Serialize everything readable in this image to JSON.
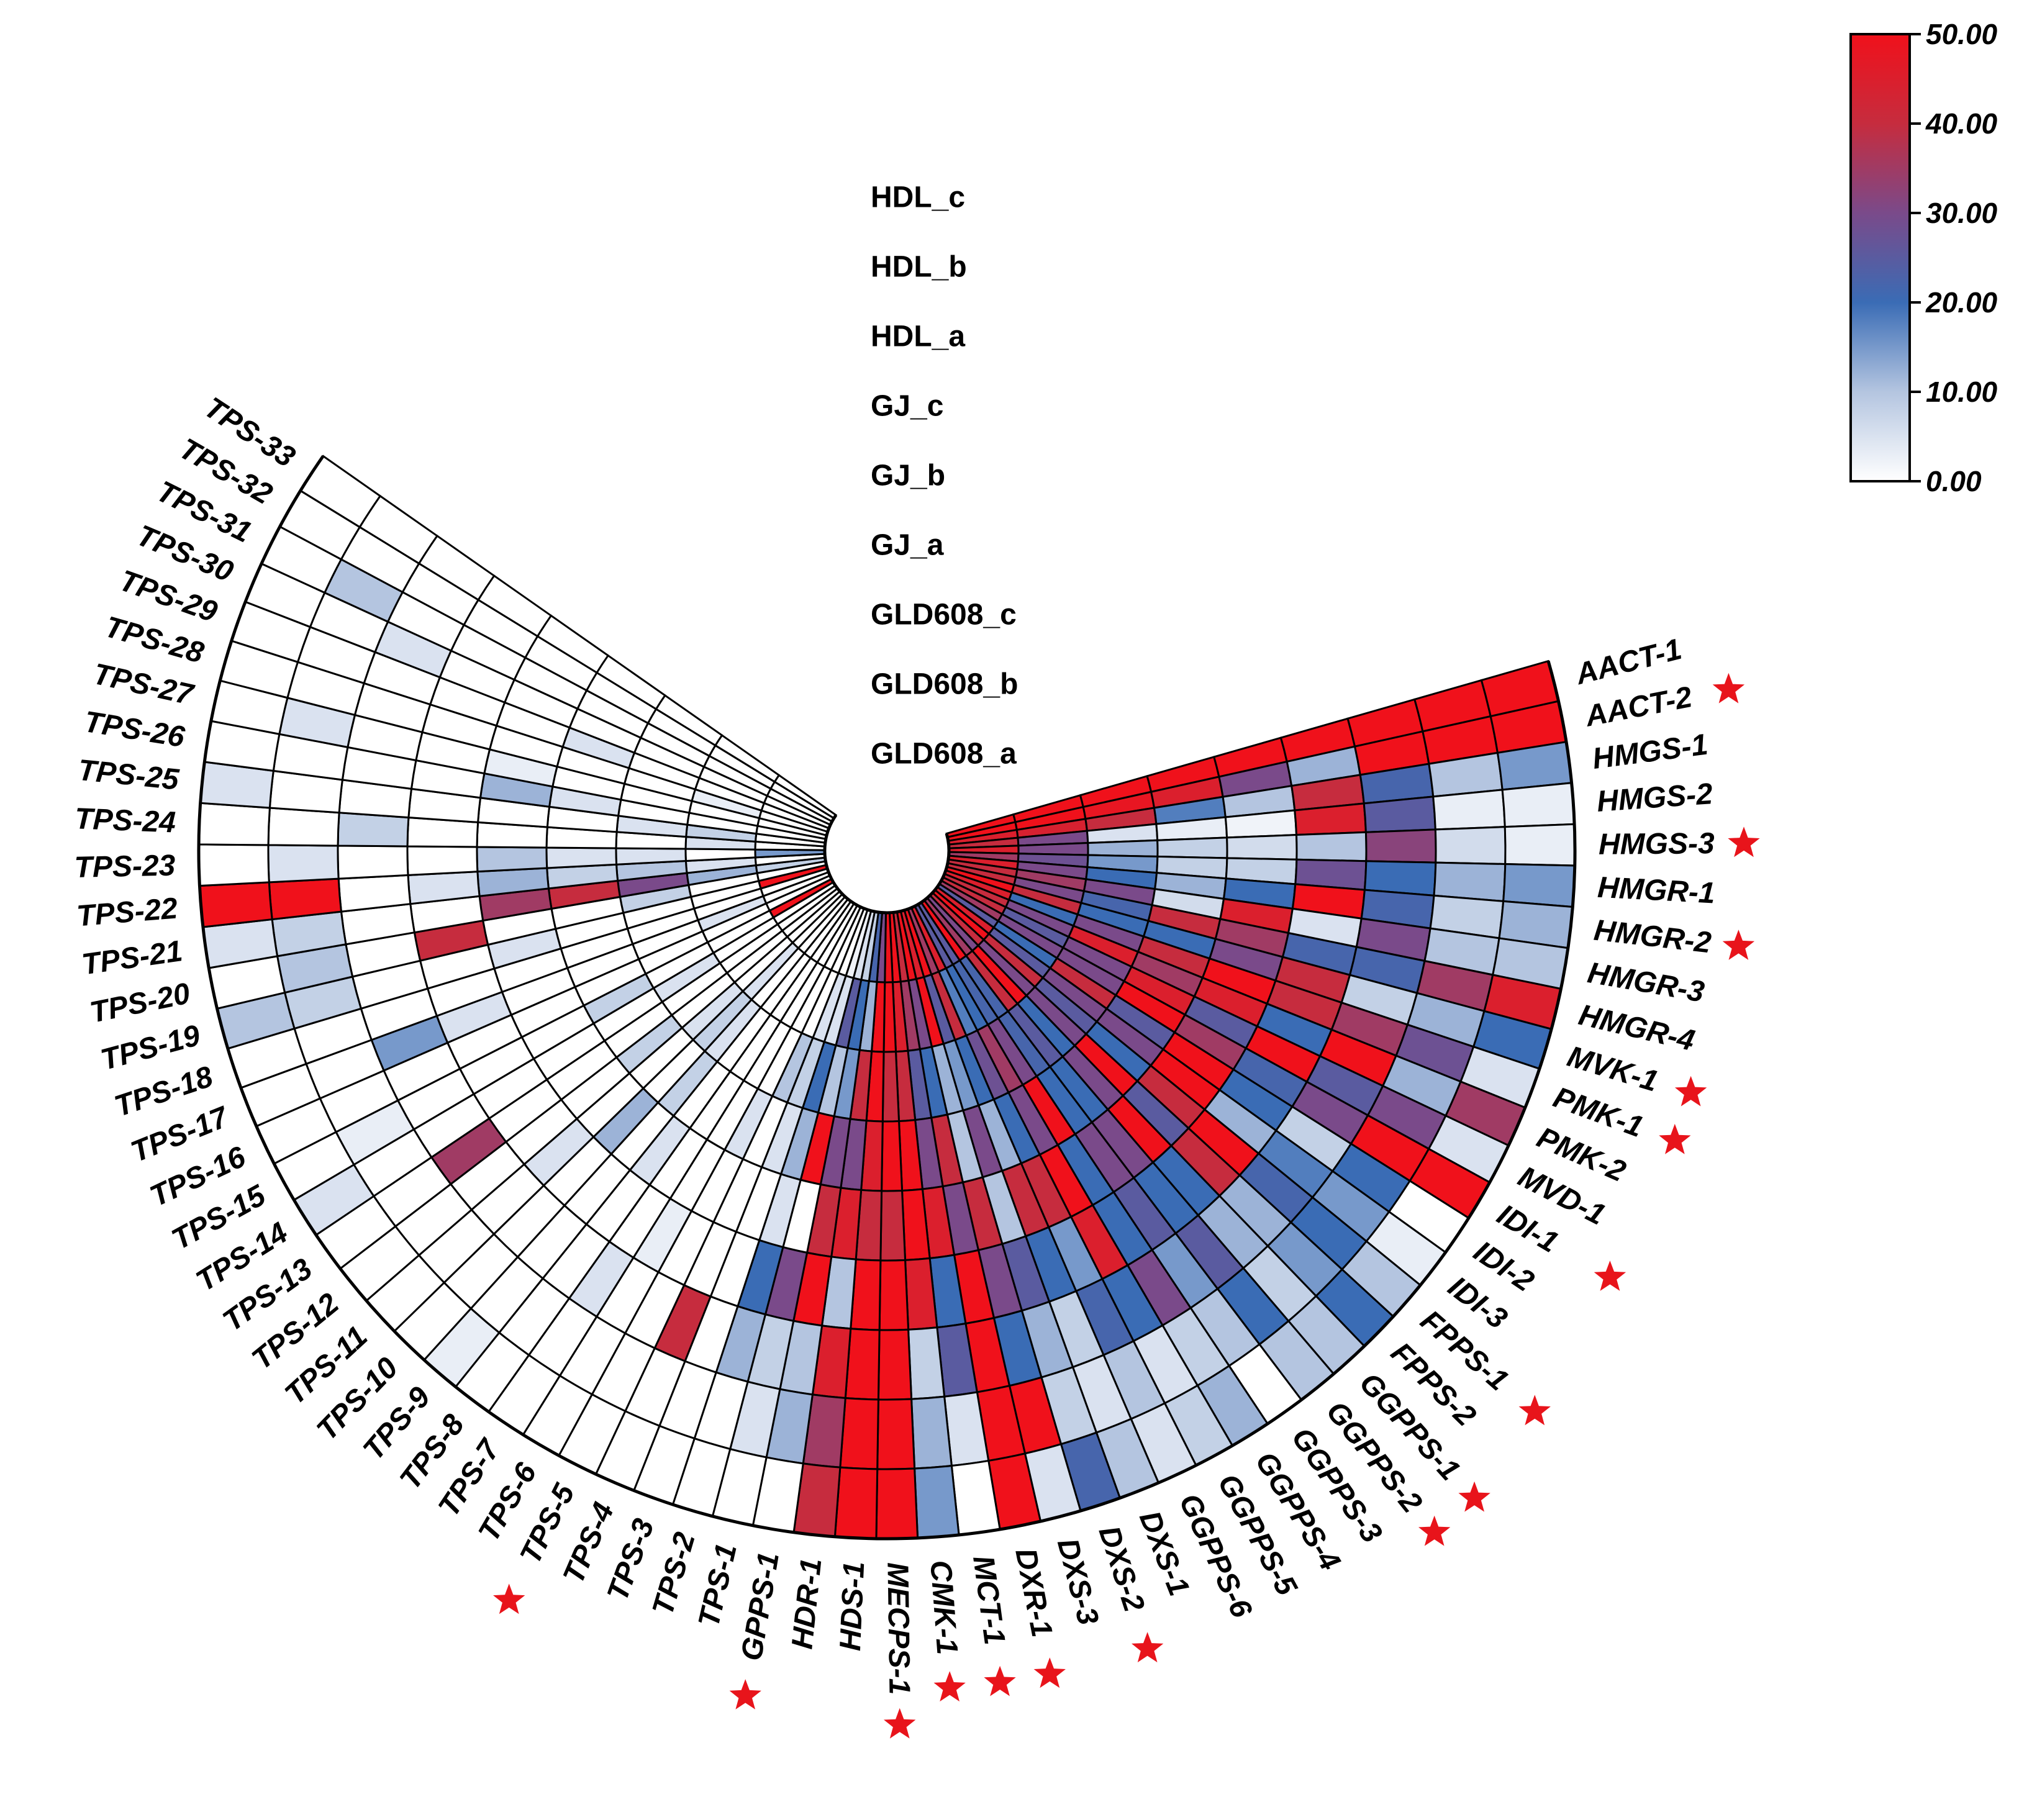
{
  "chart_data": {
    "type": "heatmap",
    "layout": "circular",
    "samples": [
      "GLD608_a",
      "GLD608_b",
      "GLD608_c",
      "GJ_a",
      "GJ_b",
      "GJ_c",
      "HDL_a",
      "HDL_b",
      "HDL_c"
    ],
    "genes": [
      "AACT-1",
      "AACT-2",
      "HMGS-1",
      "HMGS-2",
      "HMGS-3",
      "HMGR-1",
      "HMGR-2",
      "HMGR-3",
      "HMGR-4",
      "MVK-1",
      "PMK-1",
      "PMK-2",
      "MVD-1",
      "IDI-1",
      "IDI-2",
      "IDI-3",
      "FPPS-1",
      "FPPS-2",
      "GGPPS-1",
      "GGPPS-2",
      "GGPPS-3",
      "GGPPS-4",
      "GGPPS-5",
      "GGPPS-6",
      "DXS-1",
      "DXS-2",
      "DXS-3",
      "DXR-1",
      "MCT-1",
      "CMK-1",
      "MECPS-1",
      "HDS-1",
      "HDR-1",
      "GPPS-1",
      "TPS-1",
      "TPS-2",
      "TPS-3",
      "TPS-4",
      "TPS-5",
      "TPS-6",
      "TPS-7",
      "TPS-8",
      "TPS-9",
      "TPS-10",
      "TPS-11",
      "TPS-12",
      "TPS-13",
      "TPS-14",
      "TPS-15",
      "TPS-16",
      "TPS-17",
      "TPS-18",
      "TPS-19",
      "TPS-20",
      "TPS-21",
      "TPS-22",
      "TPS-23",
      "TPS-24",
      "TPS-25",
      "TPS-26",
      "TPS-27",
      "TPS-28",
      "TPS-29",
      "TPS-30",
      "TPS-31",
      "TPS-32",
      "TPS-33"
    ],
    "starred": [
      "AACT-2",
      "HMGS-3",
      "HMGR-2",
      "MVK-1",
      "PMK-1",
      "IDI-1",
      "FPPS-1",
      "GGPPS-1",
      "GGPPS-2",
      "DXS-2",
      "DXR-1",
      "MCT-1",
      "CMK-1",
      "MECPS-1",
      "GPPS-1",
      "TPS-5"
    ],
    "values": [
      [
        50,
        50,
        50,
        50,
        50,
        50,
        50,
        50,
        50
      ],
      [
        50,
        50,
        48,
        45,
        30,
        12,
        50,
        50,
        50
      ],
      [
        45,
        44,
        40,
        18,
        10,
        40,
        22,
        10,
        15
      ],
      [
        40,
        30,
        5,
        3,
        2,
        45,
        25,
        3,
        3
      ],
      [
        45,
        30,
        12,
        8,
        6,
        10,
        32,
        6,
        3
      ],
      [
        35,
        28,
        15,
        8,
        8,
        28,
        20,
        12,
        15
      ],
      [
        45,
        30,
        20,
        12,
        20,
        50,
        22,
        8,
        12
      ],
      [
        40,
        35,
        30,
        6,
        45,
        5,
        30,
        10,
        10
      ],
      [
        40,
        30,
        22,
        40,
        35,
        22,
        22,
        35,
        45
      ],
      [
        50,
        40,
        20,
        20,
        30,
        40,
        8,
        12,
        20
      ],
      [
        45,
        20,
        30,
        40,
        50,
        40,
        35,
        28,
        5
      ],
      [
        40,
        30,
        45,
        35,
        45,
        20,
        50,
        12,
        35
      ],
      [
        40,
        25,
        30,
        45,
        25,
        50,
        25,
        30,
        5
      ],
      [
        35,
        30,
        30,
        50,
        35,
        22,
        30,
        50,
        50
      ],
      [
        25,
        20,
        40,
        25,
        50,
        20,
        8,
        20,
        0
      ],
      [
        45,
        25,
        30,
        30,
        50,
        12,
        18,
        15,
        3
      ],
      [
        50,
        40,
        25,
        20,
        40,
        50,
        22,
        20,
        10
      ],
      [
        40,
        30,
        30,
        50,
        25,
        40,
        12,
        15,
        20
      ],
      [
        30,
        50,
        20,
        30,
        50,
        20,
        12,
        8,
        10
      ],
      [
        35,
        40,
        25,
        20,
        30,
        20,
        25,
        20,
        10
      ],
      [
        50,
        22,
        22,
        20,
        30,
        25,
        15,
        10,
        0
      ],
      [
        25,
        22,
        30,
        50,
        20,
        20,
        30,
        8,
        12
      ],
      [
        25,
        20,
        35,
        30,
        50,
        45,
        20,
        5,
        8
      ],
      [
        45,
        18,
        28,
        20,
        40,
        15,
        22,
        10,
        5
      ],
      [
        35,
        40,
        20,
        12,
        40,
        20,
        8,
        5,
        10
      ],
      [
        50,
        25,
        15,
        30,
        10,
        25,
        12,
        8,
        22
      ],
      [
        45,
        50,
        12,
        10,
        40,
        30,
        20,
        50,
        5
      ],
      [
        50,
        30,
        20,
        40,
        30,
        50,
        50,
        50,
        50
      ],
      [
        40,
        35,
        25,
        30,
        45,
        20,
        25,
        5,
        0
      ],
      [
        50,
        45,
        40,
        50,
        50,
        45,
        8,
        12,
        15
      ],
      [
        50,
        50,
        40,
        50,
        40,
        50,
        50,
        50,
        50
      ],
      [
        30,
        50,
        50,
        45,
        40,
        50,
        50,
        50,
        50
      ],
      [
        22,
        12,
        40,
        30,
        45,
        10,
        45,
        35,
        40
      ],
      [
        8,
        20,
        15,
        30,
        40,
        50,
        10,
        12,
        0
      ],
      [
        5,
        25,
        10,
        50,
        0,
        30,
        8,
        5,
        0
      ],
      [
        2,
        5,
        20,
        12,
        5,
        20,
        12,
        0,
        0
      ],
      [
        0,
        5,
        8,
        5,
        0,
        0,
        0,
        0,
        0
      ],
      [
        0,
        0,
        10,
        0,
        0,
        0,
        40,
        0,
        0
      ],
      [
        0,
        0,
        0,
        5,
        0,
        0,
        0,
        0,
        0
      ],
      [
        0,
        0,
        0,
        0,
        0,
        3,
        0,
        0,
        0
      ],
      [
        0,
        0,
        0,
        0,
        0,
        0,
        5,
        0,
        0
      ],
      [
        0,
        0,
        0,
        0,
        5,
        0,
        0,
        0,
        0
      ],
      [
        0,
        0,
        5,
        8,
        0,
        0,
        0,
        0,
        3
      ],
      [
        0,
        5,
        8,
        0,
        12,
        0,
        0,
        0,
        0
      ],
      [
        0,
        0,
        5,
        0,
        0,
        5,
        0,
        0,
        0
      ],
      [
        0,
        0,
        0,
        8,
        0,
        0,
        0,
        0,
        0
      ],
      [
        0,
        0,
        0,
        0,
        0,
        0,
        35,
        0,
        0
      ],
      [
        0,
        0,
        5,
        0,
        0,
        0,
        0,
        0,
        5
      ],
      [
        50,
        0,
        0,
        8,
        0,
        0,
        0,
        3,
        0
      ],
      [
        0,
        0,
        0,
        0,
        0,
        0,
        0,
        0,
        0
      ],
      [
        0,
        5,
        0,
        0,
        0,
        5,
        15,
        0,
        0
      ],
      [
        0,
        0,
        0,
        0,
        0,
        0,
        0,
        0,
        0
      ],
      [
        50,
        0,
        0,
        0,
        5,
        0,
        0,
        8,
        10
      ],
      [
        0,
        0,
        8,
        0,
        0,
        40,
        0,
        10,
        0
      ],
      [
        8,
        12,
        30,
        40,
        35,
        0,
        0,
        8,
        5
      ],
      [
        0,
        5,
        10,
        8,
        12,
        5,
        0,
        50,
        50
      ],
      [
        15,
        0,
        5,
        5,
        10,
        0,
        0,
        5,
        0
      ],
      [
        0,
        5,
        0,
        0,
        0,
        0,
        8,
        0,
        0
      ],
      [
        0,
        8,
        5,
        0,
        0,
        0,
        0,
        0,
        5
      ],
      [
        0,
        0,
        0,
        5,
        12,
        0,
        0,
        0,
        0
      ],
      [
        0,
        0,
        0,
        0,
        3,
        0,
        0,
        5,
        0
      ],
      [
        0,
        3,
        0,
        0,
        0,
        0,
        0,
        0,
        0
      ],
      [
        0,
        0,
        0,
        5,
        0,
        0,
        0,
        0,
        0
      ],
      [
        0,
        0,
        0,
        0,
        0,
        0,
        5,
        0,
        0
      ],
      [
        0,
        0,
        0,
        0,
        0,
        0,
        0,
        10,
        0
      ],
      [
        0,
        0,
        0,
        0,
        0,
        0,
        0,
        0,
        0
      ],
      [
        0,
        0,
        0,
        0,
        0,
        0,
        0,
        0,
        0
      ]
    ],
    "colorbar": {
      "min": 0,
      "max": 50,
      "ticks": [
        "0.00",
        "10.00",
        "20.00",
        "30.00",
        "40.00",
        "50.00"
      ],
      "stops": [
        {
          "value": 0,
          "color": "#ffffff"
        },
        {
          "value": 10,
          "color": "#b4c5e0"
        },
        {
          "value": 20,
          "color": "#3a6cb5"
        },
        {
          "value": 30,
          "color": "#7a4a8a"
        },
        {
          "value": 40,
          "color": "#c62c3e"
        },
        {
          "value": 50,
          "color": "#f0111b"
        }
      ]
    },
    "star_color": "#e8141b"
  }
}
